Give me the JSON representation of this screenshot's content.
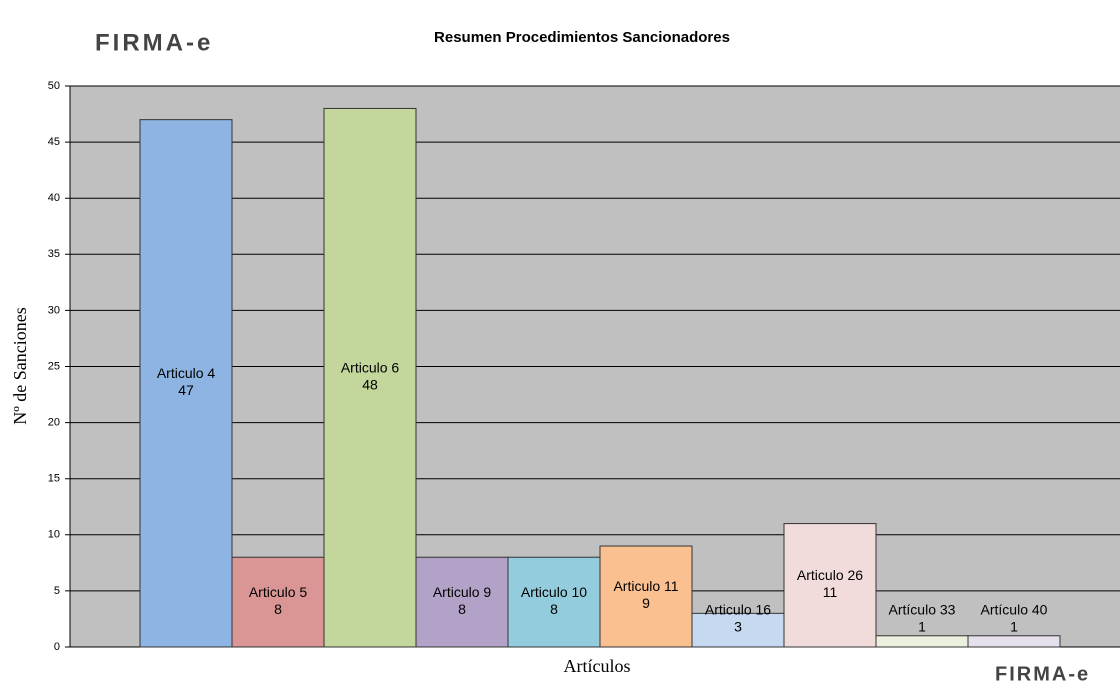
{
  "logo": "FIRMA-e",
  "chart_data": {
    "type": "bar",
    "title": "Resumen Procedimientos  Sancionadores",
    "x_label": "Artículos",
    "y_label": "Nº de Sanciones",
    "categories": [
      "Articulo 4",
      "Articulo 5",
      "Articulo 6",
      "Articulo 9",
      "Articulo 10",
      "Articulo 11",
      "Articulo 16",
      "Articulo 26",
      "Artículo 33",
      "Artículo 40"
    ],
    "values": [
      47,
      8,
      48,
      8,
      8,
      9,
      3,
      11,
      1,
      1
    ],
    "colors": [
      "#8db4e2",
      "#d99694",
      "#c3d69b",
      "#b3a2c7",
      "#93cddd",
      "#fac090",
      "#c6d9f1",
      "#f2dcdb",
      "#ebf1de",
      "#e6e0ec"
    ],
    "ylim": [
      0,
      50
    ],
    "yticks": [
      0,
      5,
      10,
      15,
      20,
      25,
      30,
      35,
      40,
      45,
      50
    ],
    "grid": true
  }
}
